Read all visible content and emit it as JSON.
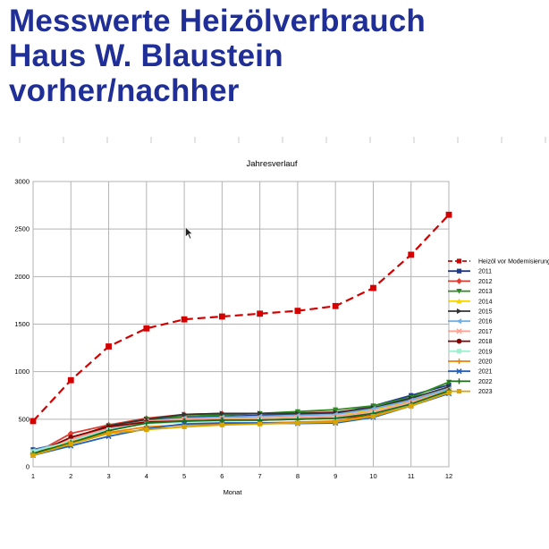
{
  "page": {
    "title_lines": [
      "Messwerte Heizölverbrauch",
      "Haus W. Blaustein",
      "vorher/nachher"
    ]
  },
  "chart_data": {
    "type": "line",
    "title": "Jahresverlauf",
    "xlabel": "Monat",
    "ylabel": "",
    "x": [
      1,
      2,
      3,
      4,
      5,
      6,
      7,
      8,
      9,
      10,
      11,
      12
    ],
    "xlim": [
      1,
      12
    ],
    "ylim": [
      0,
      3000
    ],
    "yticks": [
      0,
      500,
      1000,
      1500,
      2000,
      2500,
      3000
    ],
    "grid": true,
    "legend_position": "right",
    "series": [
      {
        "name": "Heizöl vor Modemisierung",
        "color": "#d40000",
        "marker": "square",
        "dashed": true,
        "values": [
          480,
          910,
          1265,
          1455,
          1550,
          1580,
          1610,
          1640,
          1690,
          1880,
          2230,
          2650
        ]
      },
      {
        "name": "2011",
        "color": "#1f3a8c",
        "marker": "square",
        "values": [
          180,
          270,
          400,
          490,
          520,
          530,
          540,
          545,
          560,
          640,
          750,
          860
        ]
      },
      {
        "name": "2012",
        "color": "#e03c30",
        "marker": "diamond",
        "values": [
          130,
          350,
          440,
          510,
          550,
          560,
          560,
          565,
          575,
          620,
          700,
          820
        ]
      },
      {
        "name": "2013",
        "color": "#2e8b22",
        "marker": "triangle-down",
        "values": [
          150,
          260,
          430,
          500,
          530,
          545,
          560,
          580,
          600,
          640,
          730,
          890
        ]
      },
      {
        "name": "2014",
        "color": "#f5d400",
        "marker": "triangle-up",
        "values": [
          160,
          250,
          380,
          460,
          490,
          500,
          510,
          520,
          530,
          600,
          690,
          820
        ]
      },
      {
        "name": "2015",
        "color": "#333333",
        "marker": "triangle-right",
        "values": [
          140,
          300,
          430,
          500,
          550,
          560,
          560,
          560,
          570,
          620,
          720,
          840
        ]
      },
      {
        "name": "2016",
        "color": "#6fb0ea",
        "marker": "triangle-left",
        "values": [
          170,
          280,
          400,
          480,
          510,
          520,
          530,
          540,
          550,
          610,
          700,
          820
        ]
      },
      {
        "name": "2017",
        "color": "#ff9f8f",
        "marker": "x",
        "values": [
          150,
          290,
          410,
          480,
          500,
          510,
          510,
          520,
          530,
          580,
          680,
          800
        ]
      },
      {
        "name": "2018",
        "color": "#8b0000",
        "marker": "circle",
        "values": [
          130,
          310,
          420,
          470,
          480,
          490,
          490,
          500,
          510,
          540,
          650,
          790
        ]
      },
      {
        "name": "2019",
        "color": "#9ef0d0",
        "marker": "square",
        "values": [
          160,
          270,
          390,
          450,
          470,
          480,
          490,
          500,
          510,
          560,
          650,
          780
        ]
      },
      {
        "name": "2020",
        "color": "#f08000",
        "marker": "plus",
        "values": [
          130,
          260,
          360,
          420,
          440,
          450,
          460,
          470,
          480,
          540,
          640,
          780
        ]
      },
      {
        "name": "2021",
        "color": "#1f5fbf",
        "marker": "x",
        "values": [
          120,
          220,
          320,
          400,
          450,
          460,
          460,
          455,
          460,
          520,
          640,
          770
        ]
      },
      {
        "name": "2022",
        "color": "#1a6b1a",
        "marker": "plus",
        "values": [
          140,
          250,
          380,
          460,
          480,
          490,
          490,
          500,
          510,
          560,
          660,
          800
        ]
      },
      {
        "name": "2023",
        "color": "#d9a400",
        "marker": "square",
        "values": [
          120,
          240,
          350,
          390,
          420,
          440,
          450,
          460,
          470,
          530,
          640,
          780
        ]
      }
    ]
  }
}
